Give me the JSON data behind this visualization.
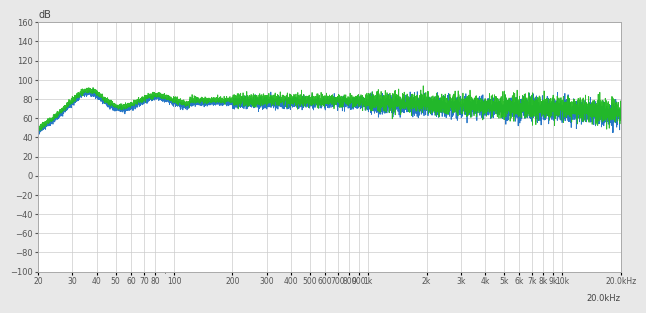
{
  "title": "dB",
  "xlabel_right": "20.0kHz",
  "bg_color": "#e8e8e8",
  "plot_bg_color": "#ffffff",
  "grid_color": "#cccccc",
  "line1_color": "#1a6fc4",
  "line2_color": "#22bb22",
  "ylim": [
    -100,
    160
  ],
  "yticks": [
    -100,
    -80,
    -60,
    -40,
    -20,
    0,
    20,
    40,
    60,
    80,
    100,
    120,
    140,
    160
  ],
  "xlim_log": [
    20,
    20000
  ],
  "xtick_positions": [
    20,
    30,
    40,
    50,
    60,
    70,
    80,
    100,
    200,
    300,
    400,
    500,
    600,
    700,
    800,
    900,
    1000,
    2000,
    3000,
    4000,
    5000,
    6000,
    7000,
    8000,
    9000,
    10000,
    20000
  ],
  "xtick_labels": [
    "20",
    "30",
    "40",
    "50",
    "60",
    "70",
    "80",
    "100",
    "200",
    "300",
    "400",
    "500",
    "600",
    "700",
    "800",
    "900",
    "1k",
    "2k",
    "3k",
    "4k",
    "5k",
    "6k",
    "7k",
    "8k",
    "9k",
    "10k",
    "20.0kHz"
  ]
}
